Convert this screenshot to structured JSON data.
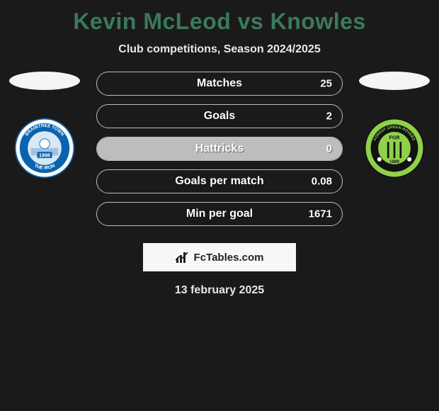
{
  "title": "Kevin McLeod vs Knowles",
  "subtitle": "Club competitions, Season 2024/2025",
  "title_color": "#3a7a5a",
  "text_color": "#e8e8e8",
  "background_color": "#1a1a1a",
  "stats": {
    "bar_border_color": "#bdbdbd",
    "bar_fill_color": "#bdbdbd",
    "label_color": "#ffffff",
    "rows": [
      {
        "label": "Matches",
        "right": "25",
        "fill_pct": 0
      },
      {
        "label": "Goals",
        "right": "2",
        "fill_pct": 0
      },
      {
        "label": "Hattricks",
        "right": "0",
        "fill_pct": 100
      },
      {
        "label": "Goals per match",
        "right": "0.08",
        "fill_pct": 0
      },
      {
        "label": "Min per goal",
        "right": "1671",
        "fill_pct": 0
      }
    ]
  },
  "left_club": {
    "name": "Braintree Town",
    "badge_bg": "#ffffff",
    "badge_ring": "#0a63b0",
    "badge_inner": "#d9e8f5",
    "badge_text_top": "BRAINTREE TOWN",
    "badge_year": "1898",
    "badge_text_bottom": "THE IRON"
  },
  "right_club": {
    "name": "Forest Green Rovers",
    "badge_bg": "#8fd14a",
    "badge_ring": "#111111",
    "badge_initials": "FGR",
    "badge_year": "1889",
    "badge_text": "FOREST GREEN ROVERS"
  },
  "footer_brand": "FcTables.com",
  "date": "13 february 2025"
}
